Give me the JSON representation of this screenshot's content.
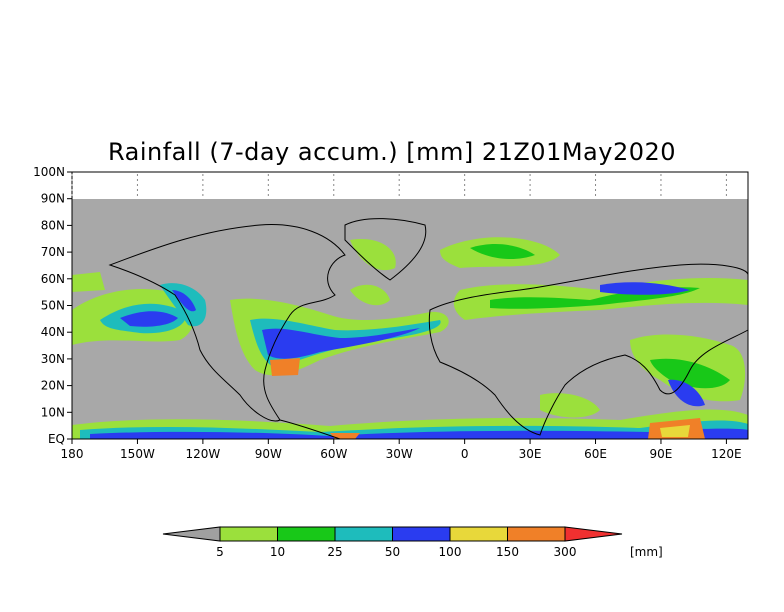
{
  "title": "Rainfall (7-day accum.) [mm] 21Z01May2020",
  "y_ticks": [
    "100N",
    "90N",
    "80N",
    "70N",
    "60N",
    "50N",
    "40N",
    "30N",
    "20N",
    "10N",
    "EQ"
  ],
  "x_ticks": [
    "180",
    "150W",
    "120W",
    "90W",
    "60W",
    "30W",
    "0",
    "30E",
    "60E",
    "90E",
    "120E"
  ],
  "legend": {
    "levels": [
      "5",
      "10",
      "25",
      "50",
      "100",
      "150",
      "300"
    ],
    "unit": "[mm]",
    "colors": [
      "#a0a0a0",
      "#9be03c",
      "#18c818",
      "#1ebcbc",
      "#2a3cf0",
      "#e8d83a",
      "#f08028",
      "#f03030"
    ]
  },
  "map": {
    "nodata_color": "#a8a8a8",
    "lon_range": [
      180,
      490
    ],
    "lat_range": [
      0,
      100
    ]
  }
}
